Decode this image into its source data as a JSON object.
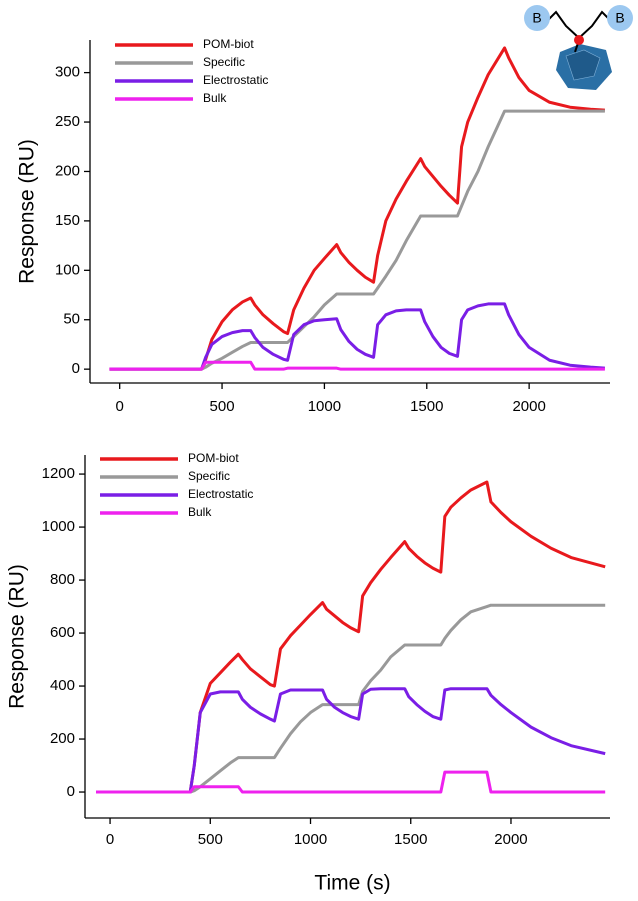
{
  "structure_icon": {
    "labels": [
      "B",
      "B"
    ]
  },
  "chart_data": [
    {
      "type": "line",
      "ylabel": "Response (RU)",
      "legend": "upper left",
      "xlim": [
        -145,
        2395
      ],
      "ylim": [
        -14,
        333
      ],
      "xticks": [
        0,
        500,
        1000,
        1500,
        2000
      ],
      "yticks": [
        0,
        50,
        100,
        150,
        200,
        250,
        300
      ],
      "x": [
        -50,
        400,
        420,
        450,
        500,
        550,
        600,
        640,
        660,
        700,
        750,
        800,
        820,
        850,
        900,
        950,
        1000,
        1060,
        1080,
        1120,
        1160,
        1200,
        1240,
        1260,
        1300,
        1350,
        1400,
        1470,
        1490,
        1530,
        1570,
        1610,
        1650,
        1670,
        1700,
        1750,
        1800,
        1880,
        1900,
        1950,
        2000,
        2100,
        2200,
        2300,
        2370
      ],
      "series": [
        {
          "name": "POM-biot",
          "color": "#e8191d",
          "values": [
            0,
            0,
            10,
            30,
            48,
            60,
            68,
            72,
            65,
            55,
            46,
            38,
            36,
            60,
            82,
            100,
            112,
            126,
            118,
            108,
            100,
            93,
            88,
            115,
            150,
            172,
            190,
            213,
            205,
            195,
            185,
            176,
            168,
            225,
            250,
            275,
            298,
            325,
            315,
            295,
            282,
            270,
            265,
            263,
            262
          ]
        },
        {
          "name": "Specific",
          "color": "#999999",
          "values": [
            0,
            0,
            2,
            6,
            11,
            17,
            23,
            27,
            27,
            27,
            27,
            27,
            27,
            33,
            43,
            53,
            65,
            76,
            76,
            76,
            76,
            76,
            76,
            82,
            94,
            110,
            130,
            155,
            155,
            155,
            155,
            155,
            155,
            165,
            180,
            200,
            225,
            261,
            261,
            261,
            261,
            261,
            261,
            261,
            261
          ]
        },
        {
          "name": "Electrostatic",
          "color": "#7a1ee6",
          "values": [
            0,
            0,
            12,
            25,
            33,
            37,
            39,
            39,
            32,
            22,
            15,
            10,
            9,
            35,
            45,
            49,
            50,
            51,
            40,
            28,
            20,
            15,
            12,
            45,
            55,
            59,
            60,
            60,
            48,
            33,
            22,
            16,
            13,
            50,
            60,
            64,
            66,
            66,
            55,
            35,
            22,
            9,
            4,
            2,
            1
          ]
        },
        {
          "name": "Bulk",
          "color": "#ee22ee",
          "values": [
            0,
            0,
            7,
            7,
            7,
            7,
            7,
            7,
            0,
            0,
            0,
            0,
            1,
            1,
            1,
            1,
            1,
            1,
            0,
            0,
            0,
            0,
            0,
            0,
            0,
            0,
            0,
            0,
            0,
            0,
            0,
            0,
            0,
            0,
            0,
            0,
            0,
            0,
            0,
            0,
            0,
            0,
            0,
            0,
            0
          ]
        }
      ]
    },
    {
      "type": "line",
      "ylabel": "Response (RU)",
      "xlabel": "Time (s)",
      "legend": "upper left",
      "xlim": [
        -125,
        2494
      ],
      "ylim": [
        -98,
        1272
      ],
      "xticks": [
        0,
        500,
        1000,
        1500,
        2000
      ],
      "yticks": [
        0,
        200,
        400,
        600,
        800,
        1000,
        1200
      ],
      "x": [
        -70,
        400,
        420,
        450,
        500,
        550,
        600,
        640,
        660,
        700,
        750,
        800,
        820,
        850,
        900,
        950,
        1000,
        1060,
        1080,
        1120,
        1160,
        1200,
        1240,
        1260,
        1300,
        1350,
        1400,
        1470,
        1490,
        1530,
        1570,
        1610,
        1650,
        1670,
        1700,
        1750,
        1800,
        1880,
        1900,
        1950,
        2000,
        2100,
        2200,
        2300,
        2470
      ],
      "series": [
        {
          "name": "POM-biot",
          "color": "#e8191d",
          "values": [
            0,
            0,
            100,
            300,
            410,
            450,
            490,
            520,
            500,
            465,
            435,
            405,
            400,
            540,
            590,
            630,
            670,
            715,
            690,
            665,
            640,
            620,
            605,
            740,
            790,
            840,
            885,
            945,
            920,
            890,
            865,
            845,
            830,
            1040,
            1075,
            1110,
            1140,
            1170,
            1095,
            1055,
            1020,
            965,
            920,
            885,
            850
          ]
        },
        {
          "name": "Specific",
          "color": "#999999",
          "values": [
            0,
            0,
            5,
            20,
            50,
            80,
            110,
            130,
            130,
            130,
            130,
            130,
            130,
            165,
            220,
            265,
            300,
            330,
            330,
            330,
            330,
            330,
            330,
            380,
            420,
            460,
            510,
            555,
            555,
            555,
            555,
            555,
            555,
            580,
            610,
            650,
            680,
            700,
            705,
            705,
            705,
            705,
            705,
            705,
            705
          ]
        },
        {
          "name": "Electrostatic",
          "color": "#7a1ee6",
          "values": [
            0,
            0,
            100,
            300,
            370,
            378,
            378,
            378,
            350,
            320,
            295,
            275,
            268,
            370,
            385,
            385,
            385,
            385,
            350,
            320,
            300,
            285,
            275,
            370,
            388,
            390,
            390,
            390,
            360,
            330,
            305,
            285,
            275,
            385,
            390,
            390,
            390,
            390,
            365,
            330,
            300,
            245,
            205,
            175,
            145
          ]
        },
        {
          "name": "Bulk",
          "color": "#ee22ee",
          "values": [
            0,
            0,
            20,
            20,
            20,
            20,
            20,
            20,
            0,
            0,
            0,
            0,
            0,
            0,
            0,
            0,
            0,
            0,
            0,
            0,
            0,
            0,
            0,
            0,
            0,
            0,
            0,
            0,
            0,
            0,
            0,
            0,
            0,
            75,
            75,
            75,
            75,
            75,
            0,
            0,
            0,
            0,
            0,
            0,
            0
          ]
        }
      ]
    }
  ]
}
